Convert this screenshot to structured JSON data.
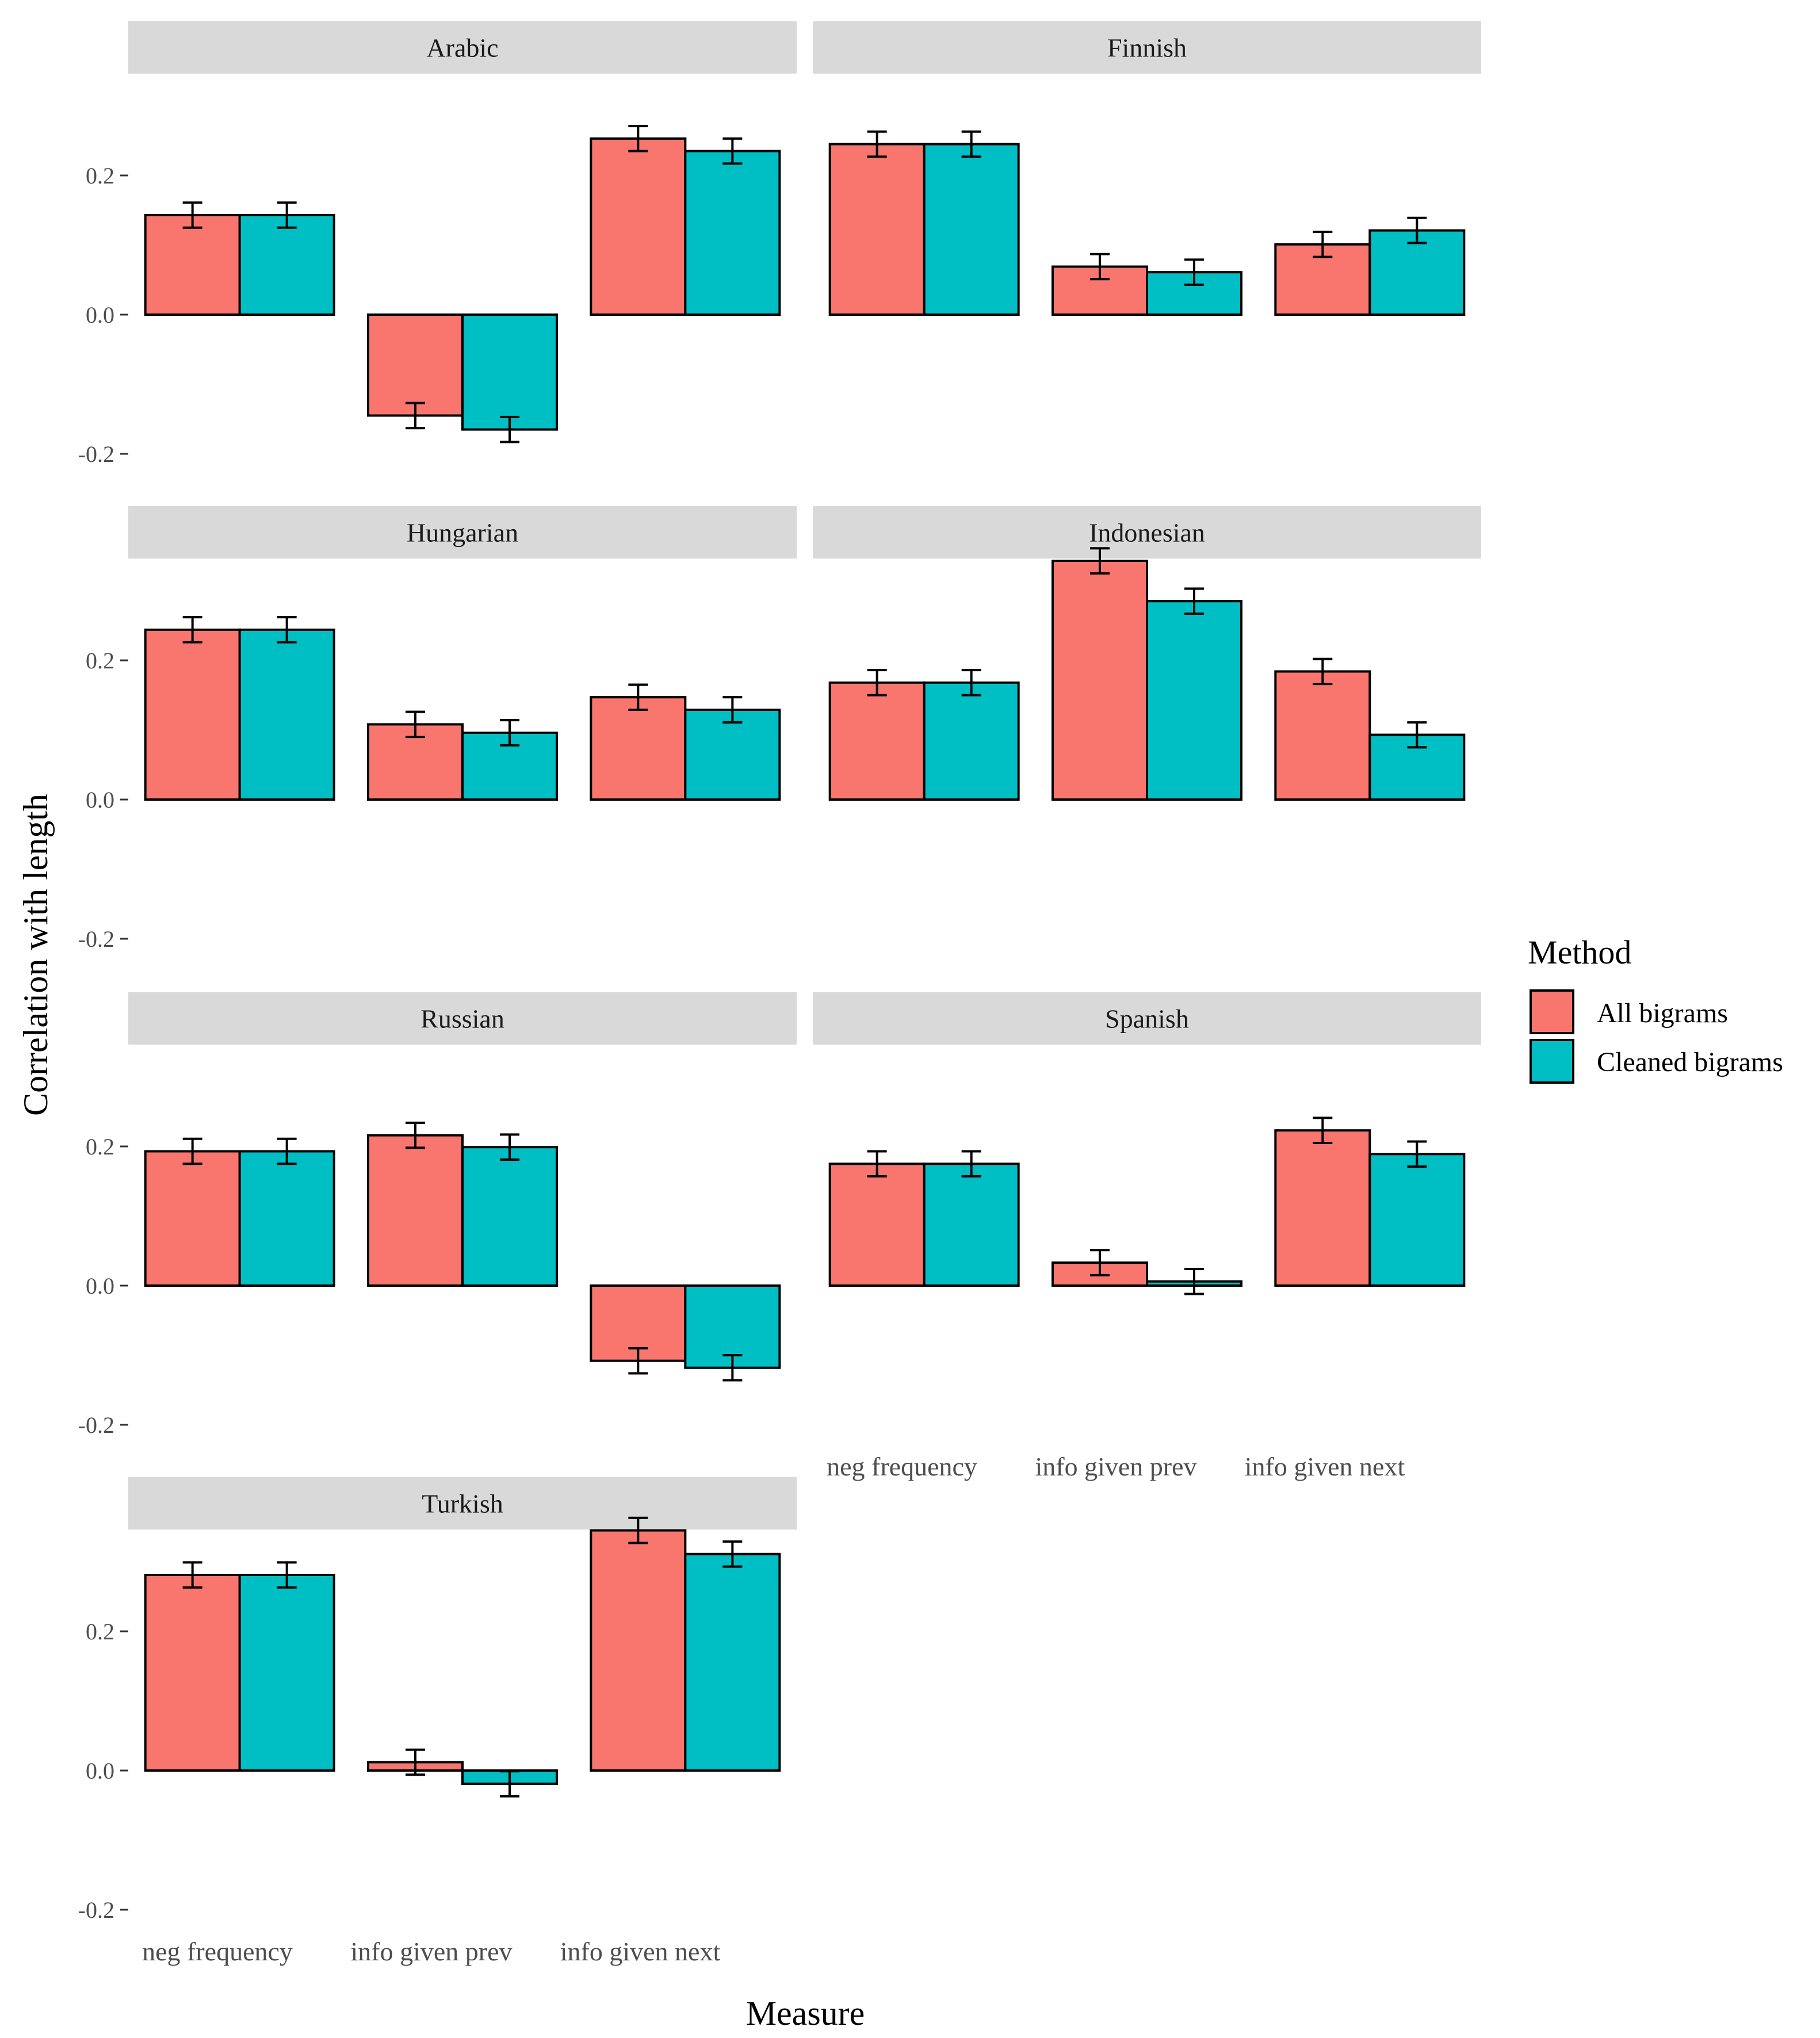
{
  "chart_data": {
    "type": "bar",
    "layout": "faceted",
    "title": "",
    "xlabel": "Measure",
    "ylabel": "Correlation with length",
    "ylim": [
      -0.2,
      0.35
    ],
    "yticks": [
      {
        "value": -0.2,
        "label": "-0.2"
      },
      {
        "value": 0.0,
        "label": "0.0"
      },
      {
        "value": 0.2,
        "label": "0.2"
      }
    ],
    "categories": [
      "neg frequency",
      "info given prev",
      "info given next"
    ],
    "legend": {
      "title": "Method",
      "position": "right",
      "entries": [
        {
          "name": "All bigrams",
          "color": "#f8766d"
        },
        {
          "name": "Cleaned bigrams",
          "color": "#00bfc4"
        }
      ]
    },
    "facets": [
      {
        "name": "Arabic",
        "series": [
          {
            "name": "All bigrams",
            "values": [
              0.143,
              -0.145,
              0.253
            ],
            "errors": [
              0.018,
              0.018,
              0.018
            ]
          },
          {
            "name": "Cleaned bigrams",
            "values": [
              0.143,
              -0.165,
              0.235
            ],
            "errors": [
              0.018,
              0.018,
              0.018
            ]
          }
        ]
      },
      {
        "name": "Finnish",
        "series": [
          {
            "name": "All bigrams",
            "values": [
              0.245,
              0.069,
              0.101
            ],
            "errors": [
              0.018,
              0.018,
              0.018
            ]
          },
          {
            "name": "Cleaned bigrams",
            "values": [
              0.245,
              0.061,
              0.121
            ],
            "errors": [
              0.018,
              0.018,
              0.018
            ]
          }
        ]
      },
      {
        "name": "Hungarian",
        "series": [
          {
            "name": "All bigrams",
            "values": [
              0.244,
              0.108,
              0.147
            ],
            "errors": [
              0.018,
              0.018,
              0.018
            ]
          },
          {
            "name": "Cleaned bigrams",
            "values": [
              0.244,
              0.096,
              0.129
            ],
            "errors": [
              0.018,
              0.018,
              0.018
            ]
          }
        ]
      },
      {
        "name": "Indonesian",
        "series": [
          {
            "name": "All bigrams",
            "values": [
              0.168,
              0.343,
              0.184
            ],
            "errors": [
              0.018,
              0.018,
              0.018
            ]
          },
          {
            "name": "Cleaned bigrams",
            "values": [
              0.168,
              0.285,
              0.093
            ],
            "errors": [
              0.018,
              0.018,
              0.018
            ]
          }
        ]
      },
      {
        "name": "Russian",
        "series": [
          {
            "name": "All bigrams",
            "values": [
              0.193,
              0.216,
              -0.108
            ],
            "errors": [
              0.018,
              0.018,
              0.018
            ]
          },
          {
            "name": "Cleaned bigrams",
            "values": [
              0.193,
              0.199,
              -0.118
            ],
            "errors": [
              0.018,
              0.018,
              0.018
            ]
          }
        ]
      },
      {
        "name": "Spanish",
        "series": [
          {
            "name": "All bigrams",
            "values": [
              0.175,
              0.033,
              0.223
            ],
            "errors": [
              0.018,
              0.018,
              0.018
            ]
          },
          {
            "name": "Cleaned bigrams",
            "values": [
              0.175,
              0.006,
              0.189
            ],
            "errors": [
              0.018,
              0.018,
              0.018
            ]
          }
        ]
      },
      {
        "name": "Turkish",
        "series": [
          {
            "name": "All bigrams",
            "values": [
              0.281,
              0.012,
              0.345
            ],
            "errors": [
              0.018,
              0.018,
              0.018
            ]
          },
          {
            "name": "Cleaned bigrams",
            "values": [
              0.281,
              -0.019,
              0.311
            ],
            "errors": [
              0.018,
              0.018,
              0.018
            ]
          }
        ]
      }
    ]
  }
}
